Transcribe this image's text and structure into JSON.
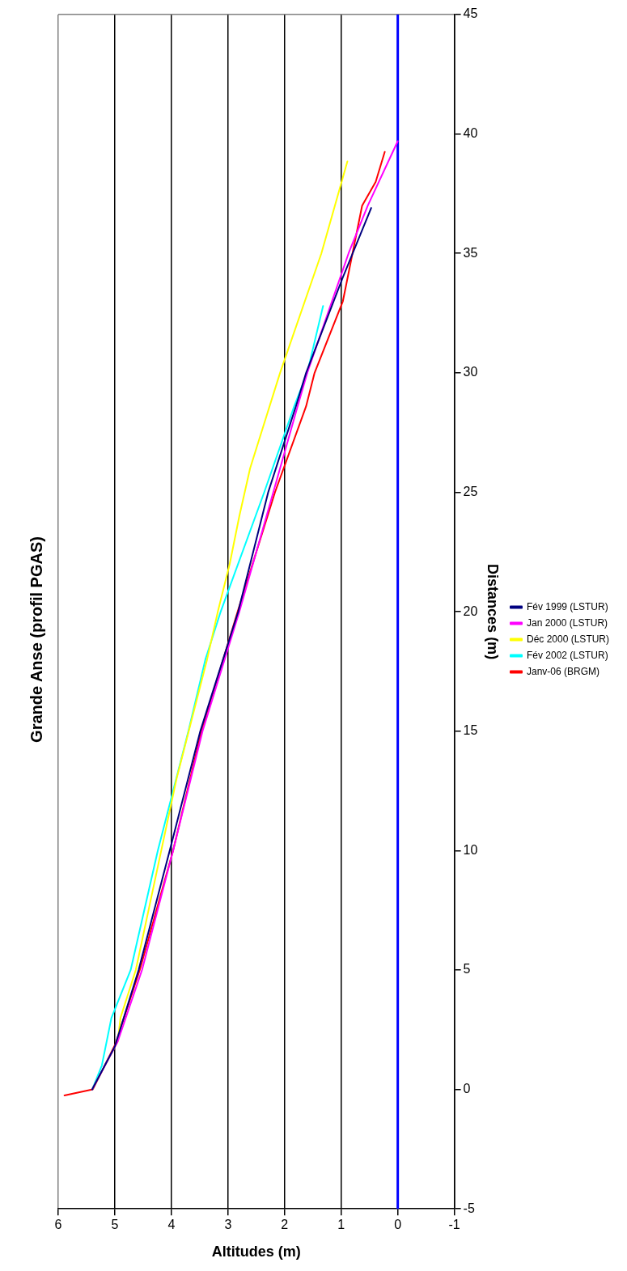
{
  "chart_data": {
    "type": "line",
    "title": "Grande Anse (profil PGAS)",
    "xlabel": "Altitudes (m)",
    "ylabel": "Distances (m)",
    "xlim": [
      6,
      -1
    ],
    "xticks": [
      6,
      5,
      4,
      3,
      2,
      1,
      0,
      -1
    ],
    "ylim": [
      -5,
      45
    ],
    "yticks": [
      -5,
      0,
      5,
      10,
      15,
      20,
      25,
      30,
      35,
      40,
      45
    ],
    "grid": "x",
    "legend": "right",
    "marker": "none",
    "line_style": "solid",
    "ref_lines": [
      {
        "axis": "x",
        "value": 0,
        "color": "#0000ff"
      }
    ],
    "series": [
      {
        "name": "Fév 1999 (LSTUR)",
        "color": "#000080",
        "values": [
          0,
          1.8,
          5,
          10,
          15,
          20,
          25,
          28.6,
          30,
          34,
          36.9
        ],
        "x": [
          5.4,
          5.0,
          4.58,
          4.03,
          3.49,
          2.82,
          2.29,
          1.8,
          1.62,
          0.97,
          0.47
        ]
      },
      {
        "name": "Jan 2000 (LSTUR)",
        "color": "#ff00ff",
        "values": [
          0,
          2,
          5,
          10,
          15,
          20,
          25,
          28.6,
          30,
          35,
          37,
          39.7
        ],
        "x": [
          5.4,
          4.95,
          4.52,
          3.97,
          3.45,
          2.8,
          2.2,
          1.77,
          1.6,
          0.87,
          0.53,
          0
        ]
      },
      {
        "name": "Déc 2000 (LSTUR)",
        "color": "#ffff00",
        "values": [
          0,
          2,
          3,
          5,
          10,
          13,
          18,
          20,
          22,
          24,
          26,
          30,
          35,
          38.85
        ],
        "x": [
          5.4,
          4.95,
          4.9,
          4.63,
          4.18,
          3.91,
          3.37,
          3.18,
          2.97,
          2.8,
          2.61,
          2.08,
          1.35,
          0.89
        ]
      },
      {
        "name": "Fév 2002 (LSTUR)",
        "color": "#00ffff",
        "values": [
          0,
          1,
          3,
          5,
          10,
          15,
          18,
          20,
          25,
          28.6,
          30,
          32.8
        ],
        "x": [
          5.4,
          5.23,
          5.06,
          4.72,
          4.24,
          3.7,
          3.4,
          3.13,
          2.36,
          1.83,
          1.6,
          1.32
        ]
      },
      {
        "name": "Janv-06 (BRGM)",
        "color": "#ff0000",
        "values": [
          -0.25,
          0,
          1.9,
          5,
          10,
          15,
          20,
          25,
          28.6,
          30,
          33,
          35,
          37,
          38,
          39.25
        ],
        "x": [
          5.89,
          5.39,
          4.99,
          4.56,
          3.97,
          3.47,
          2.83,
          2.17,
          1.62,
          1.47,
          0.97,
          0.8,
          0.63,
          0.39,
          0.23
        ]
      }
    ]
  }
}
